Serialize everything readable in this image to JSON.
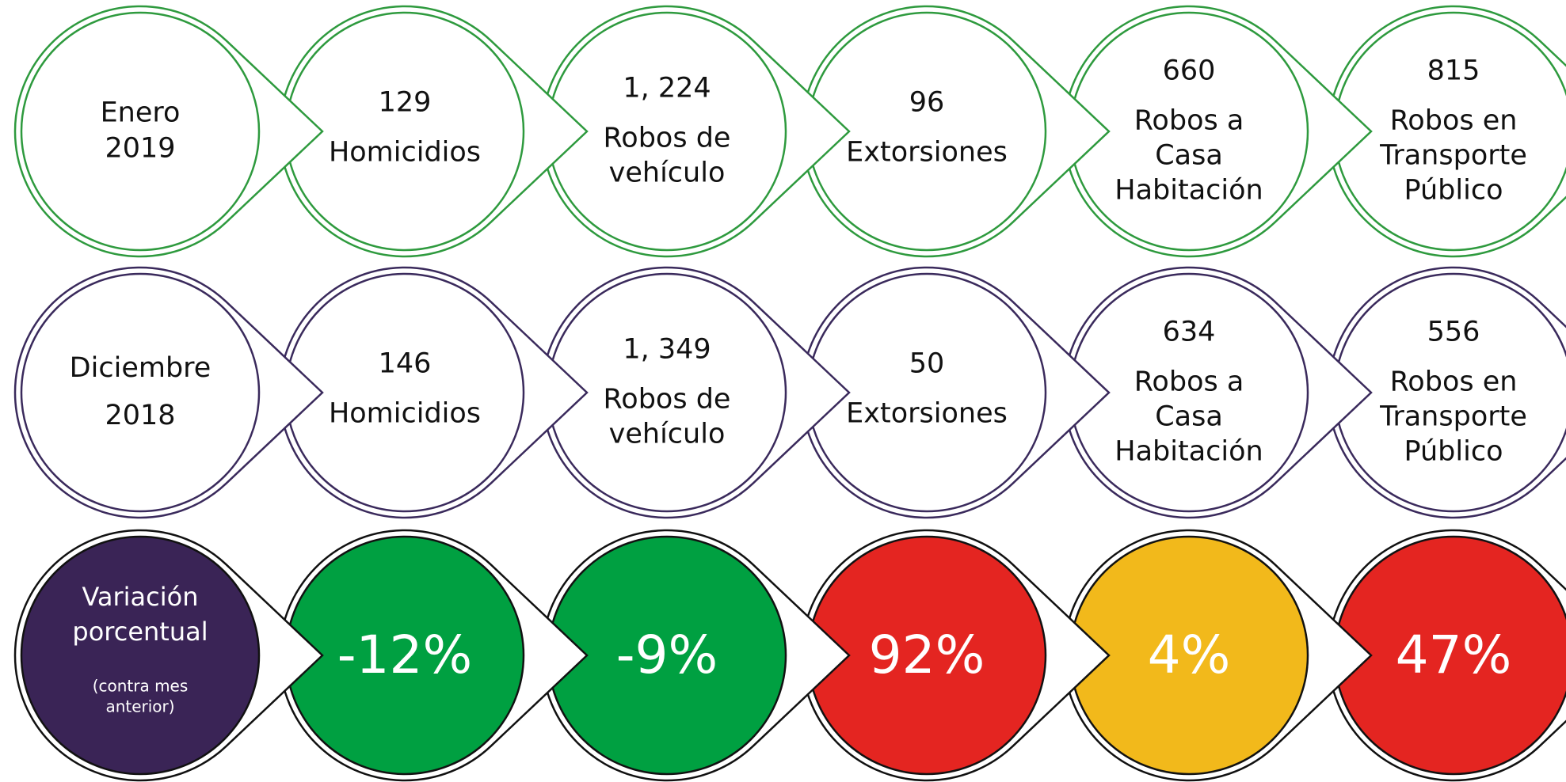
{
  "rows": [
    {
      "label": [
        "Enero",
        "2019"
      ],
      "items": [
        {
          "value": "129",
          "label": [
            "Homicidios"
          ]
        },
        {
          "value": "1, 224",
          "label": [
            "Robos de",
            "vehículo"
          ]
        },
        {
          "value": "96",
          "label": [
            "Extorsiones"
          ]
        },
        {
          "value": "660",
          "label": [
            "Robos a",
            "Casa",
            "Habitación"
          ]
        },
        {
          "value": "815",
          "label": [
            "Robos en",
            "Transporte",
            "Público"
          ]
        }
      ]
    },
    {
      "label": [
        "Diciembre",
        "2018"
      ],
      "items": [
        {
          "value": "146",
          "label": [
            "Homicidios"
          ]
        },
        {
          "value": "1, 349",
          "label": [
            "Robos de",
            "vehículo"
          ]
        },
        {
          "value": "50",
          "label": [
            "Extorsiones"
          ]
        },
        {
          "value": "634",
          "label": [
            "Robos a",
            "Casa",
            "Habitación"
          ]
        },
        {
          "value": "556",
          "label": [
            "Robos en",
            "Transporte",
            "Público"
          ]
        }
      ]
    }
  ],
  "variation": {
    "label": [
      "Variación",
      "porcentual"
    ],
    "note": [
      "(contra mes",
      "anterior)"
    ],
    "values": [
      "-12%",
      "-9%",
      "92%",
      "4%",
      "47%"
    ]
  }
}
